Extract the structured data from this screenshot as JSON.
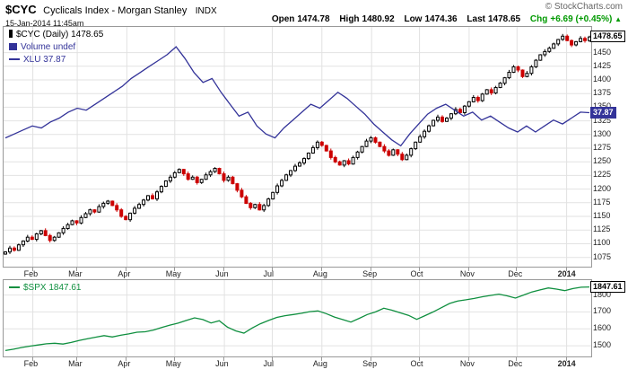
{
  "header": {
    "symbol": "$CYC",
    "title": "Cyclicals Index - Morgan Stanley",
    "exchange": "INDX",
    "copyright": "© StockCharts.com",
    "datetime": "15-Jan-2014 11:45am",
    "quote": {
      "open_label": "Open",
      "open_value": "1474.78",
      "high_label": "High",
      "high_value": "1480.92",
      "low_label": "Low",
      "low_value": "1474.36",
      "last_label": "Last",
      "last_value": "1478.65",
      "chg_label": "Chg",
      "chg_value": "+6.69 (+0.45%)",
      "chg_arrow": "▲",
      "chg_color": "#009900"
    }
  },
  "main_chart": {
    "legend_cyc": "$CYC (Daily) 1478.65",
    "legend_volume": "Volume undef",
    "legend_xlu": "XLU 37.87",
    "price_tag": "1478.65",
    "overlay_tag": "37.87"
  },
  "lower_chart": {
    "legend_spx": "$SPX 1847.61",
    "price_tag": "1847.61"
  },
  "chart_data": [
    {
      "type": "candlestick",
      "name": "$CYC (Daily)",
      "last": 1478.65,
      "ylim": [
        1058,
        1497
      ],
      "yticks": [
        1450,
        1425,
        1400,
        1375,
        1350,
        1325,
        1300,
        1275,
        1250,
        1225,
        1200,
        1175,
        1150,
        1125,
        1100,
        1075
      ],
      "x_tick_labels": [
        "Feb",
        "Mar",
        "Apr",
        "May",
        "Jun",
        "Jul",
        "Aug",
        "Sep",
        "Oct",
        "Nov",
        "Dec",
        "2014"
      ],
      "x_tick_positions": [
        0.047,
        0.123,
        0.208,
        0.29,
        0.375,
        0.457,
        0.542,
        0.627,
        0.709,
        0.794,
        0.876,
        0.961
      ],
      "close": [
        1085,
        1092,
        1088,
        1098,
        1105,
        1112,
        1108,
        1118,
        1124,
        1115,
        1106,
        1112,
        1120,
        1128,
        1135,
        1142,
        1138,
        1148,
        1155,
        1162,
        1158,
        1168,
        1174,
        1178,
        1170,
        1162,
        1150,
        1144,
        1156,
        1165,
        1172,
        1180,
        1188,
        1182,
        1195,
        1205,
        1215,
        1222,
        1230,
        1236,
        1228,
        1218,
        1222,
        1212,
        1218,
        1226,
        1232,
        1238,
        1228,
        1216,
        1222,
        1210,
        1198,
        1186,
        1174,
        1166,
        1172,
        1162,
        1170,
        1182,
        1194,
        1206,
        1216,
        1226,
        1234,
        1242,
        1248,
        1256,
        1266,
        1276,
        1286,
        1280,
        1270,
        1258,
        1250,
        1244,
        1252,
        1246,
        1258,
        1268,
        1278,
        1288,
        1294,
        1286,
        1278,
        1270,
        1262,
        1272,
        1264,
        1254,
        1262,
        1274,
        1286,
        1296,
        1306,
        1316,
        1326,
        1332,
        1324,
        1330,
        1338,
        1346,
        1340,
        1352,
        1360,
        1368,
        1362,
        1374,
        1382,
        1376,
        1386,
        1394,
        1404,
        1414,
        1424,
        1418,
        1406,
        1412,
        1424,
        1436,
        1446,
        1452,
        1458,
        1466,
        1474,
        1480,
        1472,
        1464,
        1470,
        1476,
        1472,
        1478.65
      ],
      "overlay": {
        "type": "line",
        "name": "XLU",
        "last": 37.87,
        "plot_ylim": [
          30.1,
          42.2
        ],
        "values": [
          36.6,
          36.8,
          37.0,
          37.2,
          37.1,
          37.4,
          37.6,
          37.9,
          38.1,
          38.0,
          38.3,
          38.6,
          38.9,
          39.2,
          39.6,
          39.9,
          40.2,
          40.5,
          40.8,
          41.2,
          40.6,
          39.9,
          39.4,
          39.6,
          38.9,
          38.3,
          37.7,
          37.9,
          37.2,
          36.8,
          36.6,
          37.1,
          37.5,
          37.9,
          38.3,
          38.1,
          38.5,
          38.9,
          38.6,
          38.2,
          37.8,
          37.3,
          36.9,
          36.5,
          36.2,
          36.8,
          37.3,
          37.8,
          38.1,
          38.3,
          38.0,
          37.7,
          37.9,
          37.5,
          37.7,
          37.4,
          37.1,
          36.9,
          37.2,
          36.9,
          37.2,
          37.5,
          37.3,
          37.6,
          37.9,
          37.87
        ]
      },
      "colors": {
        "up": "#000000",
        "down": "#cc0000",
        "overlay": "#333399",
        "grid": "#e2e2e2"
      }
    },
    {
      "type": "line",
      "name": "$SPX",
      "last": 1847.61,
      "ylim": [
        1437,
        1888
      ],
      "yticks": [
        1800,
        1700,
        1600,
        1500
      ],
      "x_tick_labels": [
        "Feb",
        "Mar",
        "Apr",
        "May",
        "Jun",
        "Jul",
        "Aug",
        "Sep",
        "Oct",
        "Nov",
        "Dec",
        "2014"
      ],
      "x_tick_positions": [
        0.047,
        0.123,
        0.208,
        0.29,
        0.375,
        0.457,
        0.542,
        0.627,
        0.709,
        0.794,
        0.876,
        0.961
      ],
      "values": [
        1472,
        1480,
        1490,
        1498,
        1505,
        1512,
        1515,
        1510,
        1520,
        1532,
        1542,
        1551,
        1560,
        1552,
        1562,
        1570,
        1580,
        1583,
        1593,
        1608,
        1622,
        1634,
        1650,
        1665,
        1655,
        1635,
        1648,
        1610,
        1588,
        1575,
        1605,
        1630,
        1650,
        1668,
        1678,
        1685,
        1692,
        1702,
        1706,
        1690,
        1670,
        1655,
        1640,
        1662,
        1685,
        1700,
        1722,
        1710,
        1695,
        1680,
        1656,
        1678,
        1700,
        1725,
        1750,
        1765,
        1772,
        1780,
        1790,
        1798,
        1805,
        1795,
        1782,
        1800,
        1818,
        1830,
        1842,
        1835,
        1826,
        1838,
        1846,
        1847.61
      ],
      "colors": {
        "line": "#0f8f3f",
        "grid": "#e2e2e2"
      }
    }
  ]
}
